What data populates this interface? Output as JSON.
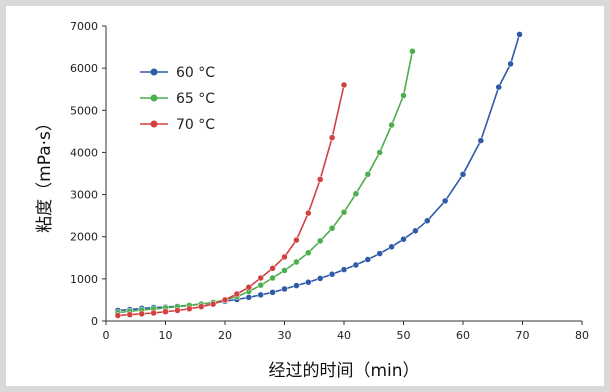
{
  "chart_data": {
    "type": "line",
    "title": "",
    "xlabel": "经过的时间（min）",
    "ylabel": "粘度（mPa·s）",
    "xlim": [
      0,
      80
    ],
    "ylim": [
      0,
      7000
    ],
    "xticks": [
      0,
      10,
      20,
      30,
      40,
      50,
      60,
      70,
      80
    ],
    "yticks": [
      0,
      1000,
      2000,
      3000,
      4000,
      5000,
      6000,
      7000
    ],
    "grid": false,
    "legend_position": "top-left",
    "series": [
      {
        "name": "60 °C",
        "color": "#2e5aa7",
        "points": [
          [
            2,
            250
          ],
          [
            4,
            270
          ],
          [
            6,
            300
          ],
          [
            8,
            320
          ],
          [
            10,
            330
          ],
          [
            12,
            350
          ],
          [
            14,
            375
          ],
          [
            16,
            400
          ],
          [
            18,
            430
          ],
          [
            20,
            470
          ],
          [
            22,
            510
          ],
          [
            24,
            560
          ],
          [
            26,
            620
          ],
          [
            28,
            680
          ],
          [
            30,
            760
          ],
          [
            32,
            840
          ],
          [
            34,
            920
          ],
          [
            36,
            1010
          ],
          [
            38,
            1110
          ],
          [
            40,
            1220
          ],
          [
            42,
            1330
          ],
          [
            44,
            1460
          ],
          [
            46,
            1600
          ],
          [
            48,
            1760
          ],
          [
            50,
            1940
          ],
          [
            52,
            2140
          ],
          [
            54,
            2380
          ],
          [
            57,
            2850
          ],
          [
            60,
            3480
          ],
          [
            63,
            4280
          ],
          [
            66,
            5550
          ],
          [
            68,
            6100
          ],
          [
            69.5,
            6800
          ]
        ]
      },
      {
        "name": "65 °C",
        "color": "#4cae4c",
        "points": [
          [
            2,
            200
          ],
          [
            4,
            230
          ],
          [
            6,
            260
          ],
          [
            8,
            285
          ],
          [
            10,
            310
          ],
          [
            12,
            340
          ],
          [
            14,
            370
          ],
          [
            16,
            400
          ],
          [
            18,
            440
          ],
          [
            20,
            500
          ],
          [
            22,
            580
          ],
          [
            24,
            700
          ],
          [
            26,
            850
          ],
          [
            28,
            1020
          ],
          [
            30,
            1200
          ],
          [
            32,
            1400
          ],
          [
            34,
            1620
          ],
          [
            36,
            1900
          ],
          [
            38,
            2200
          ],
          [
            40,
            2580
          ],
          [
            42,
            3020
          ],
          [
            44,
            3480
          ],
          [
            46,
            4000
          ],
          [
            48,
            4650
          ],
          [
            50,
            5350
          ],
          [
            51.5,
            6400
          ]
        ]
      },
      {
        "name": "70 °C",
        "color": "#d24040",
        "points": [
          [
            2,
            130
          ],
          [
            4,
            150
          ],
          [
            6,
            170
          ],
          [
            8,
            190
          ],
          [
            10,
            220
          ],
          [
            12,
            250
          ],
          [
            14,
            290
          ],
          [
            16,
            340
          ],
          [
            18,
            400
          ],
          [
            20,
            500
          ],
          [
            22,
            640
          ],
          [
            24,
            800
          ],
          [
            26,
            1020
          ],
          [
            28,
            1250
          ],
          [
            30,
            1520
          ],
          [
            32,
            1920
          ],
          [
            34,
            2560
          ],
          [
            36,
            3360
          ],
          [
            38,
            4350
          ],
          [
            40,
            5600
          ]
        ]
      }
    ]
  }
}
